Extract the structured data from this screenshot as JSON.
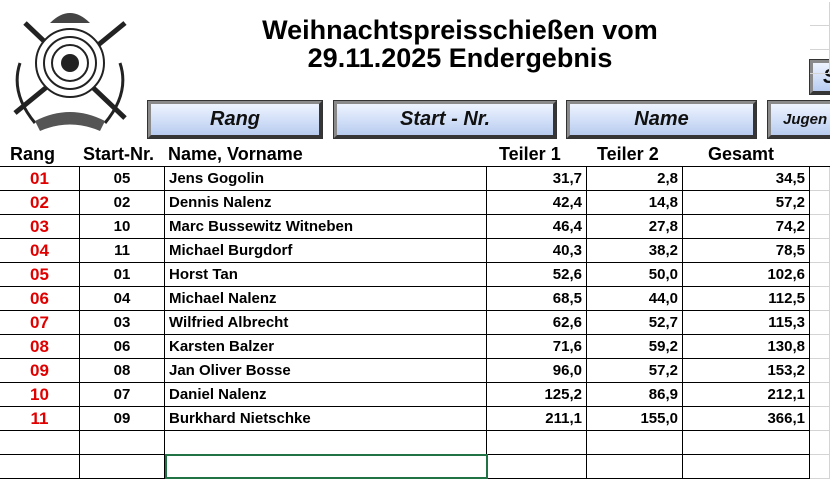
{
  "header": {
    "title_line1": "Weihnachtspreisschießen vom",
    "title_line2": "29.11.2025 Endergebnis"
  },
  "buttons": [
    "Rang",
    "Start - Nr.",
    "Name",
    "Jugen"
  ],
  "side_button": "S",
  "table": {
    "columns": [
      "Rang",
      "Start-Nr.",
      "Name, Vorname",
      "Teiler 1",
      "Teiler 2",
      "Gesamt"
    ],
    "rows": [
      [
        "01",
        "05",
        "Jens Gogolin",
        "31,7",
        "2,8",
        "34,5"
      ],
      [
        "02",
        "02",
        "Dennis Nalenz",
        "42,4",
        "14,8",
        "57,2"
      ],
      [
        "03",
        "10",
        "Marc Bussewitz Witneben",
        "46,4",
        "27,8",
        "74,2"
      ],
      [
        "04",
        "11",
        "Michael Burgdorf",
        "40,3",
        "38,2",
        "78,5"
      ],
      [
        "05",
        "01",
        "Horst Tan",
        "52,6",
        "50,0",
        "102,6"
      ],
      [
        "06",
        "04",
        "Michael Nalenz",
        "68,5",
        "44,0",
        "112,5"
      ],
      [
        "07",
        "03",
        "Wilfried Albrecht",
        "62,6",
        "52,7",
        "115,3"
      ],
      [
        "08",
        "06",
        "Karsten Balzer",
        "71,6",
        "59,2",
        "130,8"
      ],
      [
        "09",
        "08",
        "Jan Oliver Bosse",
        "96,0",
        "57,2",
        "153,2"
      ],
      [
        "10",
        "07",
        "Daniel Nalenz",
        "125,2",
        "86,9",
        "212,1"
      ],
      [
        "11",
        "09",
        "Burkhard Nietschke",
        "211,1",
        "155,0",
        "366,1"
      ]
    ]
  }
}
